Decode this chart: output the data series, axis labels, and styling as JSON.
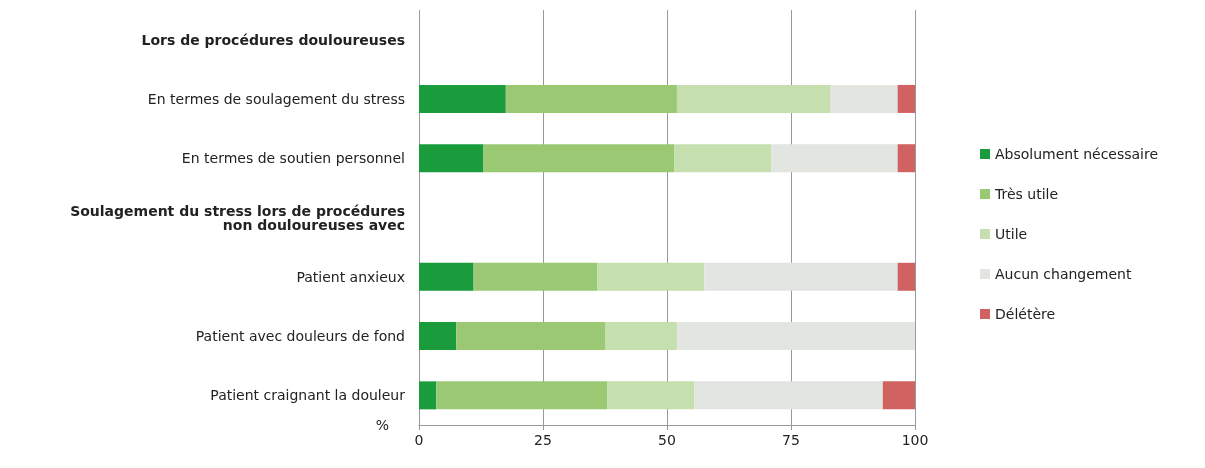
{
  "chart_data": {
    "type": "bar",
    "orientation": "horizontal",
    "stacked": true,
    "xlabel": "%",
    "categories": [
      "Lors de procédures douloureuses",
      "En termes de soulagement du stress",
      "En termes de soutien personnel",
      "Soulagement du stress lors de procédures non douloureuses avec",
      "Patient anxieux",
      "Patient avec douleurs de fond",
      "Patient craignant la douleur"
    ],
    "series": [
      {
        "name": "Absolument nécessaire",
        "color": "#1a9b3c",
        "values": [
          null,
          17.5,
          13,
          null,
          11,
          7.5,
          3.5
        ]
      },
      {
        "name": "Très utile",
        "color": "#9bc873",
        "values": [
          null,
          34.5,
          38.5,
          null,
          25,
          30,
          34.5
        ]
      },
      {
        "name": "Utile",
        "color": "#c5dfae",
        "values": [
          null,
          31,
          19.5,
          null,
          21.5,
          14.5,
          17.5
        ]
      },
      {
        "name": "Aucun changement",
        "color": "#e2e5e0",
        "values": [
          null,
          13.5,
          25.5,
          null,
          39,
          48,
          38
        ]
      },
      {
        "name": "Délétère",
        "color": "#d06262",
        "values": [
          null,
          3.5,
          3.5,
          null,
          3.5,
          0,
          6.5
        ]
      }
    ],
    "xlim": [
      0,
      100
    ],
    "xticks": [
      0,
      25,
      50,
      75,
      100
    ],
    "grid": "x",
    "legend": "right"
  }
}
